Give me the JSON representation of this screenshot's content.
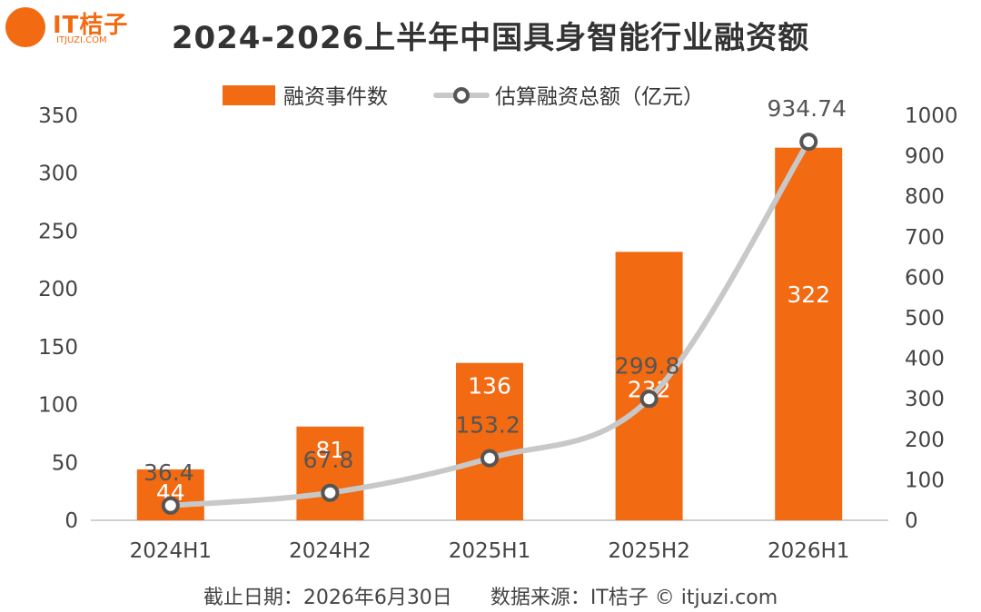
{
  "brand": {
    "name": "IT桔子",
    "url": "ITJUZI.COM",
    "color": "#f26a12"
  },
  "footer": {
    "date": "截止日期：2026年6月30日",
    "source": "数据来源：IT桔子 © itjuzi.com"
  },
  "chart_data": {
    "type": "bar",
    "title": "2024-2026上半年中国具身智能行业融资额",
    "categories": [
      "2024H1",
      "2024H2",
      "2025H1",
      "2025H2",
      "2026H1"
    ],
    "series": [
      {
        "name": "融资事件数",
        "type": "bar",
        "axis": "left",
        "color": "#f26a12",
        "values": [
          44,
          81,
          136,
          232,
          322
        ],
        "labels": [
          "44",
          "81",
          "136",
          "232",
          "322"
        ]
      },
      {
        "name": "估算融资总额（亿元）",
        "type": "line",
        "axis": "right",
        "color": "#c8c8c8",
        "values": [
          36.4,
          67.8,
          153.2,
          299.8,
          934.74
        ],
        "labels": [
          "36.4",
          "67.8",
          "153.2",
          "299.8",
          "934.74"
        ]
      }
    ],
    "y_left": {
      "min": 0,
      "max": 350,
      "ticks": [
        0,
        50,
        100,
        150,
        200,
        250,
        300,
        350
      ]
    },
    "y_right": {
      "min": 0,
      "max": 1000,
      "ticks": [
        0,
        100,
        200,
        300,
        400,
        500,
        600,
        700,
        800,
        900,
        1000
      ]
    },
    "grid": false,
    "legend": "top-center"
  }
}
